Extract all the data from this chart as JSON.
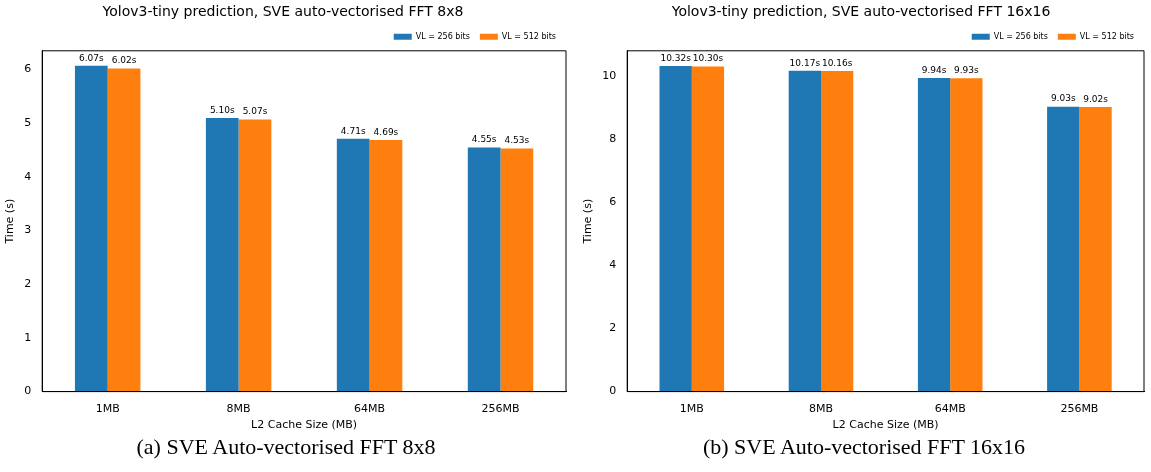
{
  "chart_data": [
    {
      "type": "bar",
      "title": "Yolov3-tiny prediction, SVE auto-vectorised FFT 8x8",
      "xlabel": "L2 Cache Size (MB)",
      "ylabel": "Time (s)",
      "categories": [
        "1MB",
        "8MB",
        "64MB",
        "256MB"
      ],
      "series": [
        {
          "name": "VL = 256 bits",
          "color": "#1f77b4",
          "values": [
            6.07,
            5.1,
            4.71,
            4.55
          ],
          "value_labels": [
            "6.07s",
            "5.10s",
            "4.71s",
            "4.55s"
          ]
        },
        {
          "name": "VL = 512 bits",
          "color": "#ff7f0e",
          "values": [
            6.02,
            5.07,
            4.69,
            4.53
          ],
          "value_labels": [
            "6.02s",
            "5.07s",
            "4.69s",
            "4.53s"
          ]
        }
      ],
      "ylim": [
        0,
        6.35
      ],
      "yticks": [
        0,
        1,
        2,
        3,
        4,
        5,
        6
      ],
      "grid": false,
      "legend": "top right",
      "annotations": [
        "(a) SVE Auto-vectorised FFT 8x8"
      ]
    },
    {
      "type": "bar",
      "title": "Yolov3-tiny prediction, SVE auto-vectorised FFT 16x16",
      "xlabel": "L2 Cache Size (MB)",
      "ylabel": "Time (s)",
      "categories": [
        "1MB",
        "8MB",
        "64MB",
        "256MB"
      ],
      "series": [
        {
          "name": "VL = 256 bits",
          "color": "#1f77b4",
          "values": [
            10.32,
            10.17,
            9.94,
            9.03
          ],
          "value_labels": [
            "10.32s",
            "10.17s",
            "9.94s",
            "9.03s"
          ]
        },
        {
          "name": "VL = 512 bits",
          "color": "#ff7f0e",
          "values": [
            10.3,
            10.16,
            9.93,
            9.02
          ],
          "value_labels": [
            "10.30s",
            "10.16s",
            "9.93s",
            "9.02s"
          ]
        }
      ],
      "ylim": [
        0,
        10.8
      ],
      "yticks": [
        0,
        2,
        4,
        6,
        8,
        10
      ],
      "grid": false,
      "legend": "top right",
      "annotations": [
        "(b) SVE Auto-vectorised FFT 16x16"
      ]
    }
  ]
}
